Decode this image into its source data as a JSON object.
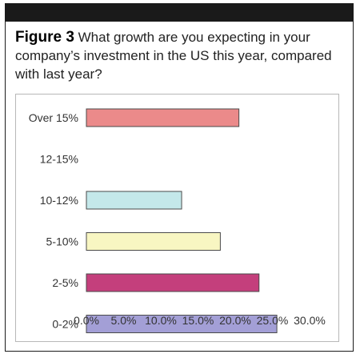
{
  "header": {
    "figure_label": "Figure 3",
    "question": "What growth are you expecting in your company’s investment in the US this year, compared with last year?"
  },
  "chart_data": {
    "type": "bar",
    "orientation": "horizontal",
    "categories": [
      "Over 15%",
      "12-15%",
      "10-12%",
      "5-10%",
      "2-5%",
      "0-2%"
    ],
    "values": [
      20.5,
      0,
      12.8,
      18.0,
      23.2,
      25.6
    ],
    "bar_colors": [
      "#eb8a8a",
      "#ffffff",
      "#c4e8ea",
      "#f8f6c2",
      "#c43f7c",
      "#a39fd6"
    ],
    "xlim": [
      0,
      30
    ],
    "xticks": [
      "0.0%",
      "5.0%",
      "10.0%",
      "15.0%",
      "20.0%",
      "25.0%",
      "30.0%"
    ],
    "grid": false,
    "title": "",
    "xlabel": "",
    "ylabel": ""
  }
}
